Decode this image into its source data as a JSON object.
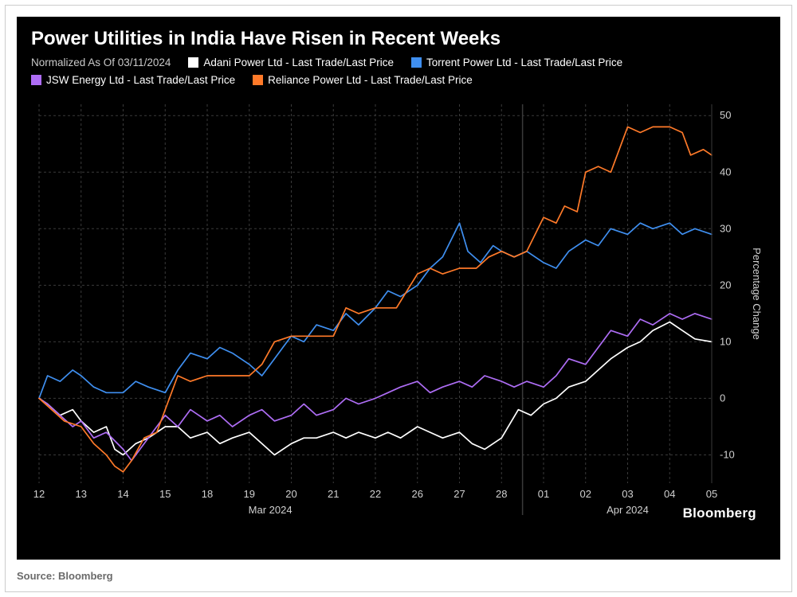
{
  "title": "Power Utilities in India Have Risen in Recent Weeks",
  "normalized_label": "Normalized As Of 03/11/2024",
  "legend": [
    {
      "label": "Adani Power Ltd - Last Trade/Last Price",
      "color": "#ffffff"
    },
    {
      "label": "Torrent Power Ltd - Last Trade/Last Price",
      "color": "#3f8ff0"
    },
    {
      "label": "JSW Energy Ltd - Last Trade/Last Price",
      "color": "#ae6df5"
    },
    {
      "label": "Reliance Power Ltd - Last Trade/Last Price",
      "color": "#ff7a29"
    }
  ],
  "source_label": "Source: Bloomberg",
  "brand": "Bloomberg",
  "chart": {
    "type": "line",
    "background_color": "#000000",
    "grid_color": "#3a3a3a",
    "axis_color": "#d0d0d0",
    "tick_font_size": 13,
    "ylabel": "Percentage Change",
    "ylabel_fontsize": 13,
    "ylim": [
      -15,
      52
    ],
    "yticks": [
      -10,
      0,
      10,
      20,
      30,
      40,
      50
    ],
    "x_categories": [
      "12",
      "13",
      "14",
      "15",
      "18",
      "19",
      "20",
      "21",
      "22",
      "26",
      "27",
      "28",
      "01",
      "02",
      "03",
      "04",
      "05"
    ],
    "x_group_labels": [
      {
        "label": "Mar 2024",
        "from_index": 0,
        "to_index": 11
      },
      {
        "label": "Apr 2024",
        "from_index": 12,
        "to_index": 16
      }
    ],
    "line_width": 1.7,
    "series": [
      {
        "name": "adani",
        "color": "#ffffff",
        "points": [
          [
            0,
            0
          ],
          [
            0.2,
            -1
          ],
          [
            0.5,
            -3
          ],
          [
            0.8,
            -2
          ],
          [
            1,
            -4
          ],
          [
            1.3,
            -6
          ],
          [
            1.6,
            -5
          ],
          [
            1.8,
            -9
          ],
          [
            2,
            -10
          ],
          [
            2.3,
            -8
          ],
          [
            2.6,
            -7
          ],
          [
            3,
            -5
          ],
          [
            3.3,
            -5
          ],
          [
            3.6,
            -7
          ],
          [
            4,
            -6
          ],
          [
            4.3,
            -8
          ],
          [
            4.6,
            -7
          ],
          [
            5,
            -6
          ],
          [
            5.3,
            -8
          ],
          [
            5.6,
            -10
          ],
          [
            6,
            -8
          ],
          [
            6.3,
            -7
          ],
          [
            6.6,
            -7
          ],
          [
            7,
            -6
          ],
          [
            7.3,
            -7
          ],
          [
            7.6,
            -6
          ],
          [
            8,
            -7
          ],
          [
            8.3,
            -6
          ],
          [
            8.6,
            -7
          ],
          [
            9,
            -5
          ],
          [
            9.3,
            -6
          ],
          [
            9.6,
            -7
          ],
          [
            10,
            -6
          ],
          [
            10.3,
            -8
          ],
          [
            10.6,
            -9
          ],
          [
            11,
            -7
          ],
          [
            11.4,
            -2
          ],
          [
            11.7,
            -3
          ],
          [
            12,
            -1
          ],
          [
            12.3,
            0
          ],
          [
            12.6,
            2
          ],
          [
            13,
            3
          ],
          [
            13.3,
            5
          ],
          [
            13.6,
            7
          ],
          [
            14,
            9
          ],
          [
            14.3,
            10
          ],
          [
            14.6,
            12
          ],
          [
            15,
            13.5
          ],
          [
            15.3,
            12
          ],
          [
            15.6,
            10.5
          ],
          [
            16,
            10
          ]
        ]
      },
      {
        "name": "torrent",
        "color": "#3f8ff0",
        "points": [
          [
            0,
            0
          ],
          [
            0.2,
            4
          ],
          [
            0.5,
            3
          ],
          [
            0.8,
            5
          ],
          [
            1,
            4
          ],
          [
            1.3,
            2
          ],
          [
            1.6,
            1
          ],
          [
            2,
            1
          ],
          [
            2.3,
            3
          ],
          [
            2.6,
            2
          ],
          [
            3,
            1
          ],
          [
            3.3,
            5
          ],
          [
            3.6,
            8
          ],
          [
            4,
            7
          ],
          [
            4.3,
            9
          ],
          [
            4.6,
            8
          ],
          [
            5,
            6
          ],
          [
            5.3,
            4
          ],
          [
            5.6,
            7
          ],
          [
            5.8,
            9
          ],
          [
            6,
            11
          ],
          [
            6.3,
            10
          ],
          [
            6.6,
            13
          ],
          [
            7,
            12
          ],
          [
            7.3,
            15
          ],
          [
            7.6,
            13
          ],
          [
            8,
            16
          ],
          [
            8.3,
            19
          ],
          [
            8.6,
            18
          ],
          [
            9,
            20
          ],
          [
            9.3,
            23
          ],
          [
            9.6,
            25
          ],
          [
            10,
            31
          ],
          [
            10.2,
            26
          ],
          [
            10.5,
            24
          ],
          [
            10.8,
            27
          ],
          [
            11,
            26
          ],
          [
            11.3,
            25
          ],
          [
            11.6,
            26
          ],
          [
            12,
            24
          ],
          [
            12.3,
            23
          ],
          [
            12.6,
            26
          ],
          [
            13,
            28
          ],
          [
            13.3,
            27
          ],
          [
            13.6,
            30
          ],
          [
            14,
            29
          ],
          [
            14.3,
            31
          ],
          [
            14.6,
            30
          ],
          [
            15,
            31
          ],
          [
            15.3,
            29
          ],
          [
            15.6,
            30
          ],
          [
            16,
            29
          ]
        ]
      },
      {
        "name": "jsw",
        "color": "#ae6df5",
        "points": [
          [
            0,
            0
          ],
          [
            0.2,
            -1
          ],
          [
            0.5,
            -3
          ],
          [
            0.8,
            -5
          ],
          [
            1,
            -4
          ],
          [
            1.3,
            -7
          ],
          [
            1.6,
            -6
          ],
          [
            2,
            -9
          ],
          [
            2.2,
            -11
          ],
          [
            2.5,
            -8
          ],
          [
            2.8,
            -5
          ],
          [
            3,
            -3
          ],
          [
            3.3,
            -5
          ],
          [
            3.6,
            -2
          ],
          [
            4,
            -4
          ],
          [
            4.3,
            -3
          ],
          [
            4.6,
            -5
          ],
          [
            5,
            -3
          ],
          [
            5.3,
            -2
          ],
          [
            5.6,
            -4
          ],
          [
            6,
            -3
          ],
          [
            6.3,
            -1
          ],
          [
            6.6,
            -3
          ],
          [
            7,
            -2
          ],
          [
            7.3,
            0
          ],
          [
            7.6,
            -1
          ],
          [
            8,
            0
          ],
          [
            8.3,
            1
          ],
          [
            8.6,
            2
          ],
          [
            9,
            3
          ],
          [
            9.3,
            1
          ],
          [
            9.6,
            2
          ],
          [
            10,
            3
          ],
          [
            10.3,
            2
          ],
          [
            10.6,
            4
          ],
          [
            11,
            3
          ],
          [
            11.3,
            2
          ],
          [
            11.6,
            3
          ],
          [
            12,
            2
          ],
          [
            12.3,
            4
          ],
          [
            12.6,
            7
          ],
          [
            13,
            6
          ],
          [
            13.3,
            9
          ],
          [
            13.6,
            12
          ],
          [
            14,
            11
          ],
          [
            14.3,
            14
          ],
          [
            14.6,
            13
          ],
          [
            15,
            15
          ],
          [
            15.3,
            14
          ],
          [
            15.6,
            15
          ],
          [
            16,
            14
          ]
        ]
      },
      {
        "name": "reliance",
        "color": "#ff7a29",
        "points": [
          [
            0,
            0
          ],
          [
            0.3,
            -2
          ],
          [
            0.6,
            -4
          ],
          [
            1,
            -5
          ],
          [
            1.3,
            -8
          ],
          [
            1.6,
            -10
          ],
          [
            1.8,
            -12
          ],
          [
            2,
            -13
          ],
          [
            2.2,
            -11
          ],
          [
            2.5,
            -7
          ],
          [
            2.8,
            -6
          ],
          [
            3,
            -2
          ],
          [
            3.3,
            4
          ],
          [
            3.6,
            3
          ],
          [
            4,
            4
          ],
          [
            4.5,
            4
          ],
          [
            5,
            4
          ],
          [
            5.3,
            6
          ],
          [
            5.6,
            10
          ],
          [
            6,
            11
          ],
          [
            6.5,
            11
          ],
          [
            7,
            11
          ],
          [
            7.3,
            16
          ],
          [
            7.6,
            15
          ],
          [
            8,
            16
          ],
          [
            8.5,
            16
          ],
          [
            9,
            22
          ],
          [
            9.3,
            23
          ],
          [
            9.6,
            22
          ],
          [
            10,
            23
          ],
          [
            10.4,
            23
          ],
          [
            10.7,
            25
          ],
          [
            11,
            26
          ],
          [
            11.3,
            25
          ],
          [
            11.6,
            26
          ],
          [
            12,
            32
          ],
          [
            12.3,
            31
          ],
          [
            12.5,
            34
          ],
          [
            12.8,
            33
          ],
          [
            13,
            40
          ],
          [
            13.3,
            41
          ],
          [
            13.6,
            40
          ],
          [
            14,
            48
          ],
          [
            14.3,
            47
          ],
          [
            14.6,
            48
          ],
          [
            15,
            48
          ],
          [
            15.3,
            47
          ],
          [
            15.5,
            43
          ],
          [
            15.8,
            44
          ],
          [
            16,
            43
          ]
        ]
      }
    ]
  }
}
